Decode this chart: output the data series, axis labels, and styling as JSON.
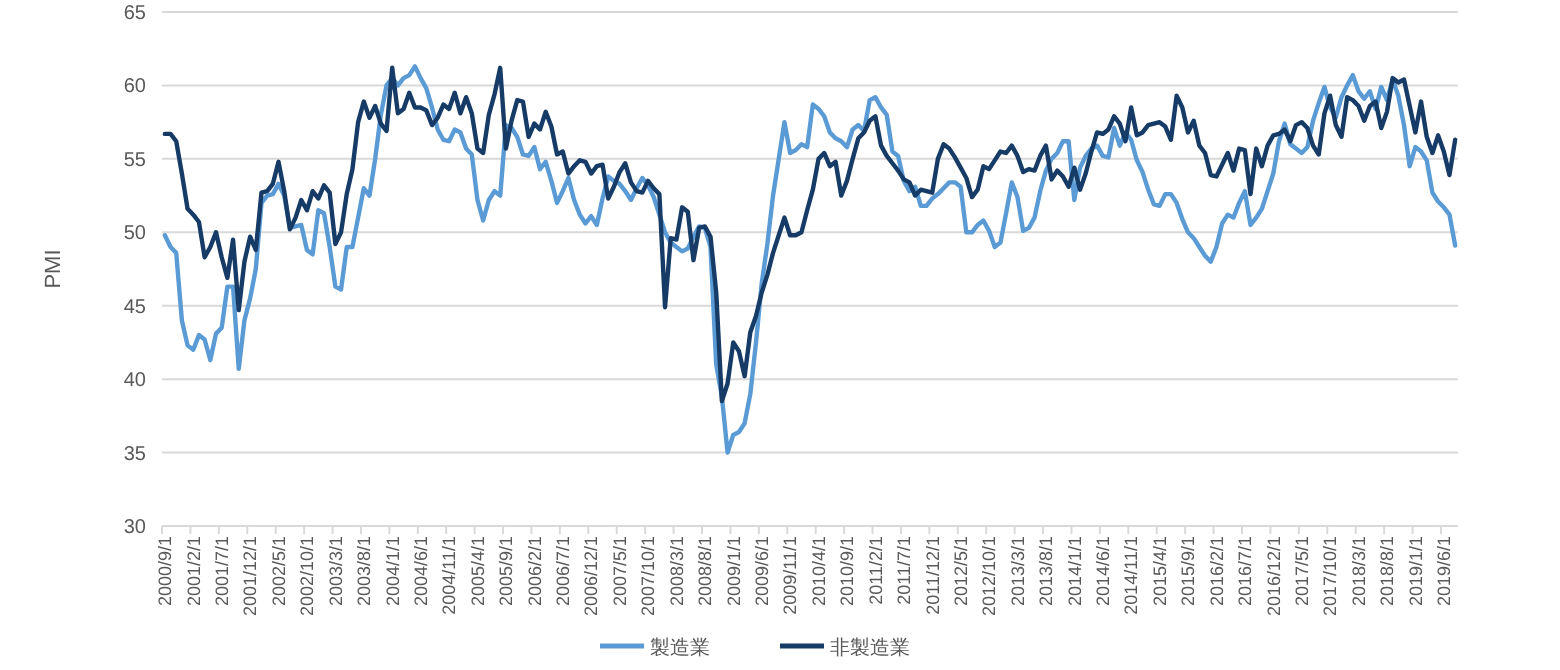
{
  "chart_data": {
    "type": "line",
    "ylabel": "PMI",
    "categories": [
      "2000/9/1",
      null,
      null,
      null,
      null,
      "2001/2/1",
      null,
      null,
      null,
      null,
      "2001/7/1",
      null,
      null,
      null,
      null,
      "2001/12/1",
      null,
      null,
      null,
      null,
      "2002/5/1",
      null,
      null,
      null,
      null,
      "2002/10/1",
      null,
      null,
      null,
      null,
      "2003/3/1",
      null,
      null,
      null,
      null,
      "2003/8/1",
      null,
      null,
      null,
      null,
      "2004/1/1",
      null,
      null,
      null,
      null,
      "2004/6/1",
      null,
      null,
      null,
      null,
      "2004/11/1",
      null,
      null,
      null,
      null,
      "2005/4/1",
      null,
      null,
      null,
      null,
      "2005/9/1",
      null,
      null,
      null,
      null,
      "2006/2/1",
      null,
      null,
      null,
      null,
      "2006/7/1",
      null,
      null,
      null,
      null,
      "2006/12/1",
      null,
      null,
      null,
      null,
      "2007/5/1",
      null,
      null,
      null,
      null,
      "2007/10/1",
      null,
      null,
      null,
      null,
      "2008/3/1",
      null,
      null,
      null,
      null,
      "2008/8/1",
      null,
      null,
      null,
      null,
      "2009/1/1",
      null,
      null,
      null,
      null,
      "2009/6/1",
      null,
      null,
      null,
      null,
      "2009/11/1",
      null,
      null,
      null,
      null,
      "2010/4/1",
      null,
      null,
      null,
      null,
      "2010/9/1",
      null,
      null,
      null,
      null,
      "2011/2/1",
      null,
      null,
      null,
      null,
      "2011/7/1",
      null,
      null,
      null,
      null,
      "2011/12/1",
      null,
      null,
      null,
      null,
      "2012/5/1",
      null,
      null,
      null,
      null,
      "2012/10/1",
      null,
      null,
      null,
      null,
      "2013/3/1",
      null,
      null,
      null,
      null,
      "2013/8/1",
      null,
      null,
      null,
      null,
      "2014/1/1",
      null,
      null,
      null,
      null,
      "2014/6/1",
      null,
      null,
      null,
      null,
      "2014/11/1",
      null,
      null,
      null,
      null,
      "2015/4/1",
      null,
      null,
      null,
      null,
      "2015/9/1",
      null,
      null,
      null,
      null,
      "2016/2/1",
      null,
      null,
      null,
      null,
      "2016/7/1",
      null,
      null,
      null,
      null,
      "2016/12/1",
      null,
      null,
      null,
      null,
      "2017/5/1",
      null,
      null,
      null,
      null,
      "2017/10/1",
      null,
      null,
      null,
      null,
      "2018/3/1",
      null,
      null,
      null,
      null,
      "2018/8/1",
      null,
      null,
      null,
      null,
      "2019/1/1",
      null,
      null,
      null,
      null,
      "2019/6/1",
      null,
      null
    ],
    "series": [
      {
        "name": "製造業",
        "color": "#5b9bd5",
        "values": [
          49.8,
          49.0,
          48.6,
          44,
          42.3,
          42.0,
          43,
          42.7,
          41.3,
          43.1,
          43.5,
          46.3,
          46.3,
          40.7,
          44,
          45.5,
          47.5,
          52,
          52.5,
          52.6,
          53.3,
          52.5,
          50.3,
          50.4,
          50.5,
          48.8,
          48.5,
          51.5,
          51.3,
          49,
          46.3,
          46.1,
          49,
          49,
          51,
          53,
          52.5,
          55,
          58,
          60,
          60.5,
          60,
          60.5,
          60.7,
          61.3,
          60.5,
          59.8,
          58.5,
          57,
          56.3,
          56.2,
          57,
          56.8,
          55.7,
          55.3,
          52.2,
          50.8,
          52.2,
          52.8,
          52.5,
          57.3,
          57.1,
          56.5,
          55.3,
          55.2,
          55.8,
          54.3,
          54.8,
          53.5,
          52,
          52.8,
          53.7,
          52.2,
          51.2,
          50.6,
          51.1,
          50.5,
          52.3,
          53.8,
          53.5,
          53.3,
          52.8,
          52.2,
          53,
          53.7,
          53.2,
          52.4,
          51.2,
          50,
          49.3,
          49,
          48.7,
          48.9,
          49.7,
          50.4,
          50.3,
          49,
          41,
          38.8,
          35,
          36.2,
          36.4,
          37,
          39,
          42.5,
          46.5,
          49.2,
          52.5,
          55,
          57.5,
          55.4,
          55.6,
          56,
          55.8,
          58.7,
          58.4,
          57.9,
          56.8,
          56.4,
          56.2,
          55.8,
          57,
          57.3,
          56.9,
          59,
          59.2,
          58.5,
          58,
          55.5,
          55.2,
          53.5,
          52.8,
          53.1,
          51.8,
          51.8,
          52.3,
          52.6,
          53,
          53.4,
          53.4,
          53.1,
          50,
          50,
          50.5,
          50.8,
          50.1,
          49,
          49.3,
          51.3,
          53.4,
          52.4,
          50.1,
          50.3,
          51,
          52.8,
          54.2,
          55,
          55.4,
          56.2,
          56.2,
          52.2,
          54.4,
          55.2,
          55.7,
          55.9,
          55.2,
          55.1,
          57.1,
          55.9,
          56.8,
          56.3,
          54.9,
          54.1,
          52.9,
          51.9,
          51.8,
          52.6,
          52.6,
          52,
          50.9,
          50,
          49.6,
          49,
          48.4,
          48,
          49,
          50.6,
          51.2,
          51,
          52,
          52.8,
          50.5,
          51,
          51.6,
          52.8,
          54,
          56.2,
          57.4,
          56,
          55.7,
          55.4,
          55.8,
          57.6,
          58.8,
          59.9,
          58.5,
          57.8,
          59.2,
          60,
          60.7,
          59.6,
          59.1,
          59.6,
          58.4,
          59.9,
          59,
          60.4,
          59.3,
          57.3,
          54.5,
          55.8,
          55.5,
          54.9,
          52.7,
          52.1,
          51.7,
          51.2,
          49.1
        ]
      },
      {
        "name": "非製造業",
        "color": "#163b66",
        "values": [
          56.7,
          56.7,
          56.2,
          54,
          51.6,
          51.2,
          50.7,
          48.3,
          49,
          50,
          48.3,
          46.9,
          49.5,
          44.7,
          48,
          49.7,
          48.8,
          52.7,
          52.8,
          53.3,
          54.8,
          52.8,
          50.2,
          51,
          52.2,
          51.5,
          52.8,
          52.3,
          53.2,
          52.7,
          49.2,
          50,
          52.6,
          54.3,
          57.5,
          58.9,
          57.8,
          58.6,
          57.4,
          56.9,
          61.2,
          58.1,
          58.4,
          59.5,
          58.5,
          58.5,
          58.3,
          57.3,
          57.8,
          58.7,
          58.4,
          59.5,
          58.1,
          59.2,
          58.1,
          55.7,
          55.4,
          58,
          59.4,
          61.2,
          55.7,
          57.6,
          59,
          58.9,
          56.5,
          57.4,
          57,
          58.2,
          57.2,
          55.3,
          55.5,
          54,
          54.5,
          54.9,
          54.8,
          54,
          54.5,
          54.6,
          52.3,
          53.1,
          54.1,
          54.7,
          53.4,
          52.8,
          52.7,
          53.5,
          53,
          52.6,
          44.9,
          49.6,
          49.5,
          51.7,
          51.4,
          48.1,
          50.3,
          50.4,
          49.7,
          45.9,
          38.5,
          39.7,
          42.5,
          41.9,
          40.2,
          43.2,
          44.3,
          45.9,
          47.1,
          48.6,
          49.8,
          51,
          49.8,
          49.8,
          50,
          51.5,
          52.9,
          55,
          55.4,
          54.5,
          54.8,
          52.5,
          53.5,
          55,
          56.4,
          56.8,
          57.6,
          57.9,
          55.9,
          55.2,
          54.7,
          54.2,
          53.6,
          53.4,
          52.5,
          52.9,
          52.8,
          52.7,
          55,
          56,
          55.7,
          55.1,
          54.4,
          53.7,
          52.4,
          52.9,
          54.5,
          54.3,
          54.9,
          55.5,
          55.4,
          55.9,
          55.2,
          54.1,
          54.3,
          54.2,
          55.2,
          55.9,
          53.6,
          54.2,
          53.8,
          53.1,
          54.4,
          52.9,
          54,
          55.5,
          56.8,
          56.7,
          57,
          57.9,
          57.4,
          56.2,
          58.5,
          56.6,
          56.8,
          57.3,
          57.4,
          57.5,
          57.2,
          56.3,
          59.3,
          58.5,
          56.8,
          57.6,
          55.9,
          55.4,
          53.9,
          53.8,
          54.6,
          55.4,
          54.2,
          55.7,
          55.6,
          52.6,
          55.7,
          54.5,
          55.9,
          56.6,
          56.7,
          57,
          56.2,
          57.3,
          57.5,
          57.1,
          55.9,
          55.3,
          58.1,
          59.3,
          57.3,
          56.5,
          59.2,
          59,
          58.6,
          57.6,
          58.6,
          58.9,
          57.1,
          58.2,
          60.5,
          60.2,
          60.4,
          58.6,
          56.8,
          58.9,
          56.5,
          55.4,
          56.6,
          55.5,
          53.9,
          56.3
        ]
      }
    ],
    "ylim": [
      30,
      65
    ],
    "yticks": [
      30,
      35,
      40,
      45,
      50,
      55,
      60,
      65
    ],
    "grid": "y",
    "legend": "bottom",
    "marker": "none",
    "line_style": "solid"
  }
}
